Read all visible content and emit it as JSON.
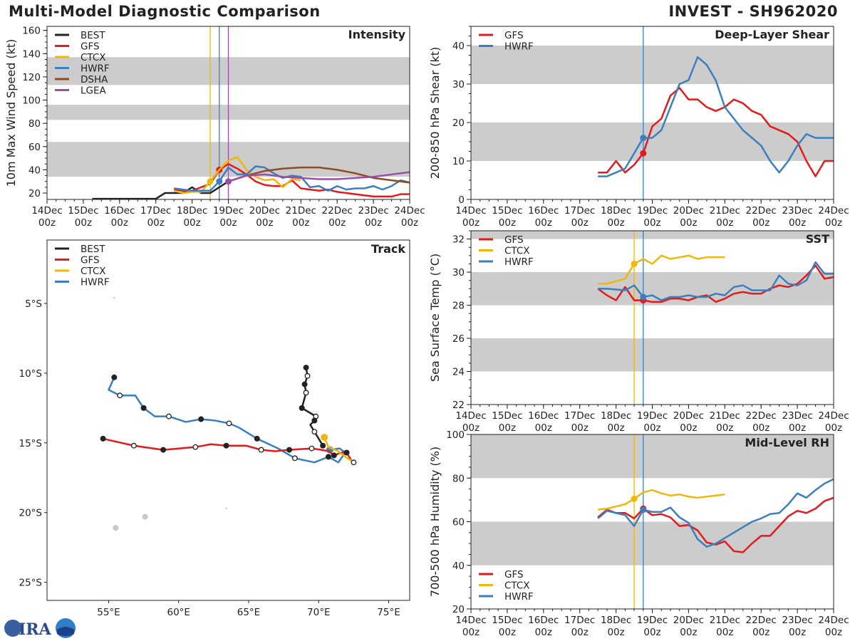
{
  "header": {
    "title": "Multi-Model Diagnostic Comparison",
    "storm": "INVEST - SH962020"
  },
  "logo_text": "CIRA",
  "colors": {
    "BEST": "#222222",
    "GFS": "#e41a1c",
    "CTCX": "#efb70a",
    "HWRF": "#3b7fbf",
    "DSHA": "#8c4d22",
    "LGEA": "#9a4fa6",
    "band": "#cccccc",
    "land": "#c8c8c8"
  },
  "chart_data": [
    {
      "id": "intensity",
      "type": "line",
      "title": "Intensity",
      "ylabel": "10m Max Wind Speed (kt)",
      "ylim": [
        14.5,
        163.5
      ],
      "yticks": [
        20,
        40,
        60,
        80,
        100,
        120,
        140,
        160
      ],
      "xlim": [
        "14Dec00z",
        "24Dec00z"
      ],
      "xticks": [
        "14Dec 00z",
        "15Dec 00z",
        "16Dec 00z",
        "17Dec 00z",
        "18Dec 00z",
        "19Dec 00z",
        "20Dec 00z",
        "21Dec 00z",
        "22Dec 00z",
        "23Dec 00z",
        "24Dec 00z"
      ],
      "bands": [
        [
          34,
          64
        ],
        [
          83,
          96
        ],
        [
          113,
          137
        ]
      ],
      "legend": "top-left",
      "init_lines": [
        {
          "model": "CTCX",
          "time": "18Dec12z"
        },
        {
          "model": "HWRF",
          "time": "18Dec18z"
        },
        {
          "model": "LGEA",
          "time": "19Dec00z"
        }
      ],
      "series": [
        {
          "name": "BEST",
          "start": "15Dec06z",
          "interval_hours": 6,
          "values": [
            15,
            15,
            15,
            15,
            15,
            15,
            15,
            15,
            20,
            20,
            20,
            25,
            20,
            20,
            25,
            30
          ]
        },
        {
          "name": "GFS",
          "start": "17Dec12z",
          "interval_hours": 6,
          "marker_at": "18Dec18z",
          "values": [
            23,
            22,
            22,
            25,
            28,
            40,
            45,
            41,
            36,
            30,
            27,
            26,
            26,
            31,
            24,
            23,
            22,
            23,
            21,
            20,
            19,
            18,
            17,
            17,
            17,
            19,
            19
          ]
        },
        {
          "name": "CTCX",
          "start": "17Dec12z",
          "interval_hours": 6,
          "marker_at": "18Dec12z",
          "values": [
            22,
            20,
            21,
            21,
            30,
            40,
            48,
            51,
            40,
            34,
            31,
            32,
            25,
            32,
            31
          ]
        },
        {
          "name": "HWRF",
          "start": "17Dec12z",
          "interval_hours": 6,
          "marker_at": "18Dec18z",
          "values": [
            24,
            23,
            22,
            22,
            22,
            30,
            42,
            36,
            36,
            43,
            42,
            37,
            33,
            35,
            34,
            25,
            26,
            22,
            26,
            23,
            24,
            24,
            26,
            23,
            26,
            31,
            29
          ]
        },
        {
          "name": "DSHA",
          "start": "19Dec00z",
          "interval_hours": 12,
          "values": [
            30,
            35,
            39,
            41,
            42,
            42,
            40,
            37,
            33,
            31,
            29
          ]
        },
        {
          "name": "LGEA",
          "start": "19Dec00z",
          "interval_hours": 12,
          "marker_at": "19Dec00z",
          "values": [
            30,
            35,
            36,
            34,
            33,
            32,
            32,
            33,
            34,
            36,
            38
          ]
        }
      ]
    },
    {
      "id": "shear",
      "type": "line",
      "title": "Deep-Layer Shear",
      "ylabel": "200-850 hPa Shear (kt)",
      "ylim": [
        0,
        45
      ],
      "yticks": [
        0,
        10,
        20,
        30,
        40
      ],
      "xlim": [
        "14Dec00z",
        "24Dec00z"
      ],
      "xticks": [
        "14Dec 00z",
        "15Dec 00z",
        "16Dec 00z",
        "17Dec 00z",
        "18Dec 00z",
        "19Dec 00z",
        "20Dec 00z",
        "21Dec 00z",
        "22Dec 00z",
        "23Dec 00z",
        "24Dec 00z"
      ],
      "bands": [
        [
          10,
          20
        ],
        [
          30,
          40
        ]
      ],
      "legend": "top-left",
      "init_lines": [
        {
          "model": "HWRF",
          "time": "18Dec18z"
        }
      ],
      "series": [
        {
          "name": "GFS",
          "start": "17Dec12z",
          "interval_hours": 6,
          "marker_at": "18Dec18z",
          "values": [
            7,
            7,
            10,
            7,
            9,
            12,
            19,
            21,
            27,
            29,
            26,
            26,
            24,
            23,
            24,
            26,
            25,
            23,
            22,
            19,
            18,
            17,
            15,
            10,
            6,
            10,
            10
          ]
        },
        {
          "name": "HWRF",
          "start": "17Dec12z",
          "interval_hours": 6,
          "marker_at": "18Dec18z",
          "values": [
            6,
            6,
            7,
            8,
            12,
            16,
            16,
            18,
            24,
            30,
            31,
            37,
            35,
            31,
            24,
            21,
            18,
            16,
            14,
            10,
            7,
            10,
            14,
            17,
            16,
            16,
            16
          ]
        }
      ]
    },
    {
      "id": "sst",
      "type": "line",
      "title": "SST",
      "ylabel": "Sea Surface Temp (°C)",
      "ylim": [
        22,
        32.5
      ],
      "yticks": [
        22,
        24,
        26,
        28,
        30,
        32
      ],
      "xlim": [
        "14Dec00z",
        "24Dec00z"
      ],
      "xticks": [
        "14Dec 00z",
        "15Dec 00z",
        "16Dec 00z",
        "17Dec 00z",
        "18Dec 00z",
        "19Dec 00z",
        "20Dec 00z",
        "21Dec 00z",
        "22Dec 00z",
        "23Dec 00z",
        "24Dec 00z"
      ],
      "bands": [
        [
          24,
          26
        ],
        [
          28,
          30
        ],
        [
          32,
          32.5
        ]
      ],
      "legend": "top-left",
      "init_lines": [
        {
          "model": "CTCX",
          "time": "18Dec12z"
        },
        {
          "model": "HWRF",
          "time": "18Dec18z"
        }
      ],
      "series": [
        {
          "name": "GFS",
          "start": "17Dec12z",
          "interval_hours": 6,
          "marker_at": "18Dec18z",
          "values": [
            29.0,
            28.6,
            28.3,
            29.1,
            28.3,
            28.3,
            28.2,
            28.2,
            28.4,
            28.4,
            28.3,
            28.5,
            28.6,
            28.2,
            28.4,
            28.7,
            28.8,
            28.7,
            28.7,
            29.0,
            29.2,
            29.1,
            29.3,
            29.8,
            30.4,
            29.6,
            29.7
          ]
        },
        {
          "name": "CTCX",
          "start": "17Dec12z",
          "interval_hours": 6,
          "marker_at": "18Dec12z",
          "values": [
            29.3,
            29.3,
            29.45,
            29.6,
            30.5,
            30.8,
            30.5,
            31.0,
            30.8,
            30.9,
            31.0,
            30.8,
            30.9,
            30.9,
            30.9
          ]
        },
        {
          "name": "HWRF",
          "start": "17Dec12z",
          "interval_hours": 6,
          "marker_at": "18Dec18z",
          "values": [
            29.0,
            29.0,
            28.95,
            28.9,
            29.2,
            28.5,
            28.6,
            28.3,
            28.5,
            28.5,
            28.6,
            28.5,
            28.5,
            28.7,
            28.6,
            29.1,
            29.2,
            28.9,
            28.9,
            28.9,
            29.8,
            29.3,
            29.2,
            29.5,
            30.6,
            29.9,
            29.9
          ]
        }
      ]
    },
    {
      "id": "rh",
      "type": "line",
      "title": "Mid-Level RH",
      "ylabel": "700-500 hPa Humidity (%)",
      "ylim": [
        20,
        100
      ],
      "yticks": [
        20,
        40,
        60,
        80,
        100
      ],
      "xlim": [
        "14Dec00z",
        "24Dec00z"
      ],
      "xticks": [
        "14Dec 00z",
        "15Dec 00z",
        "16Dec 00z",
        "17Dec 00z",
        "18Dec 00z",
        "19Dec 00z",
        "20Dec 00z",
        "21Dec 00z",
        "22Dec 00z",
        "23Dec 00z",
        "24Dec 00z"
      ],
      "bands": [
        [
          40,
          60
        ],
        [
          80,
          100
        ]
      ],
      "legend": "bottom-left",
      "init_lines": [
        {
          "model": "CTCX",
          "time": "18Dec12z"
        },
        {
          "model": "HWRF",
          "time": "18Dec18z"
        }
      ],
      "series": [
        {
          "name": "GFS",
          "start": "17Dec12z",
          "interval_hours": 6,
          "marker_at": "18Dec18z",
          "values": [
            62,
            65.5,
            64,
            64,
            61.5,
            66,
            63,
            63.5,
            62,
            58,
            58.5,
            56,
            50.5,
            49.5,
            51,
            46.5,
            46,
            50,
            53.5,
            53.5,
            58,
            62.5,
            65,
            64,
            66,
            69.5,
            71
          ]
        },
        {
          "name": "CTCX",
          "start": "17Dec12z",
          "interval_hours": 6,
          "marker_at": "18Dec12z",
          "values": [
            65.5,
            66,
            67,
            68,
            70.5,
            73.5,
            74.5,
            73,
            72,
            72.5,
            71.5,
            71,
            71.5,
            72,
            72.5
          ]
        },
        {
          "name": "HWRF",
          "start": "17Dec12z",
          "interval_hours": 6,
          "marker_at": "18Dec18z",
          "values": [
            61.5,
            65,
            64,
            63,
            58,
            65.5,
            64.5,
            64.5,
            66.5,
            62,
            59.5,
            52,
            48.5,
            50,
            52.5,
            55,
            57.5,
            60,
            61.5,
            63.5,
            64,
            68,
            73,
            71,
            74.5,
            77.5,
            79.5
          ]
        }
      ]
    },
    {
      "id": "track",
      "type": "map",
      "title": "Track",
      "lon_range": [
        50.6,
        76.5
      ],
      "lat_range": [
        -26.3,
        -0.45
      ],
      "lon_ticks": [
        55,
        60,
        65,
        70,
        75
      ],
      "lon_tick_labels": [
        "55°E",
        "60°E",
        "65°E",
        "70°E",
        "75°E"
      ],
      "lat_ticks": [
        -5,
        -10,
        -15,
        -20,
        -25
      ],
      "lat_tick_labels": [
        "5°S",
        "10°S",
        "15°S",
        "20°S",
        "25°S"
      ],
      "legend": "top-left",
      "land": [
        [
          55.5,
          -21.1
        ],
        [
          57.6,
          -20.3
        ],
        [
          63.4,
          -19.7
        ],
        [
          55.4,
          -4.6
        ]
      ],
      "tracks": [
        {
          "name": "BEST",
          "points": [
            [
              69.1,
              -9.6,
              "f"
            ],
            [
              69.2,
              -10.2,
              "o"
            ],
            [
              69.0,
              -10.8,
              "f"
            ],
            [
              69.1,
              -11.4,
              "o"
            ],
            [
              68.8,
              -12.5,
              "f"
            ],
            [
              69.8,
              -13.1,
              "o"
            ],
            [
              69.7,
              -13.4,
              "f"
            ],
            [
              69.4,
              -13.7,
              ""
            ],
            [
              69.7,
              -14.2,
              "o"
            ],
            [
              70.3,
              -15.2,
              "f"
            ]
          ]
        },
        {
          "name": "GFS",
          "points": [
            [
              54.6,
              -14.7,
              "f"
            ],
            [
              56.8,
              -15.2,
              "o"
            ],
            [
              58.9,
              -15.5,
              "f"
            ],
            [
              61.2,
              -15.3,
              "o"
            ],
            [
              62.3,
              -15.1,
              ""
            ],
            [
              63.4,
              -15.2,
              "f"
            ],
            [
              64.8,
              -15.2,
              ""
            ],
            [
              65.9,
              -15.5,
              "o"
            ],
            [
              66.9,
              -15.6,
              ""
            ],
            [
              67.9,
              -15.5,
              "f"
            ],
            [
              69.5,
              -15.4,
              "o"
            ],
            [
              70.2,
              -15.5,
              ""
            ],
            [
              70.7,
              -15.6,
              ""
            ],
            [
              71.1,
              -15.9,
              "f"
            ],
            [
              71.6,
              -15.7,
              ""
            ],
            [
              72.0,
              -15.7,
              "f"
            ],
            [
              72.3,
              -16.2,
              ""
            ]
          ]
        },
        {
          "name": "CTCX",
          "points": [
            [
              70.4,
              -14.6,
              "init"
            ],
            [
              70.7,
              -15.3,
              ""
            ],
            [
              71.4,
              -15.6,
              ""
            ],
            [
              71.9,
              -16.0,
              ""
            ],
            [
              72.5,
              -16.4,
              "o"
            ]
          ]
        },
        {
          "name": "HWRF",
          "points": [
            [
              55.4,
              -10.3,
              "f"
            ],
            [
              55.0,
              -11.2,
              ""
            ],
            [
              55.8,
              -11.6,
              "o"
            ],
            [
              56.9,
              -11.6,
              ""
            ],
            [
              57.5,
              -12.5,
              "f"
            ],
            [
              58.3,
              -13.1,
              ""
            ],
            [
              59.3,
              -13.1,
              "o"
            ],
            [
              60.5,
              -13.5,
              ""
            ],
            [
              61.6,
              -13.3,
              "f"
            ],
            [
              62.6,
              -13.4,
              ""
            ],
            [
              63.6,
              -13.6,
              "o"
            ],
            [
              64.3,
              -13.9,
              ""
            ],
            [
              65.6,
              -14.7,
              "f"
            ],
            [
              67.1,
              -15.4,
              ""
            ],
            [
              68.3,
              -16.1,
              "o"
            ],
            [
              69.7,
              -16.4,
              ""
            ],
            [
              70.7,
              -16.0,
              "f"
            ],
            [
              71.4,
              -16.4,
              ""
            ],
            [
              71.9,
              -15.7,
              ""
            ],
            [
              71.5,
              -15.4,
              ""
            ],
            [
              70.8,
              -15.5,
              "init"
            ]
          ]
        }
      ]
    }
  ]
}
